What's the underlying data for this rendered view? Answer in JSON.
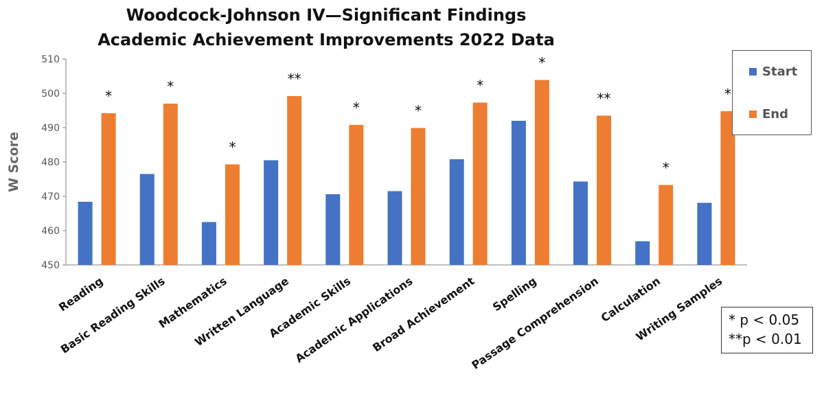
{
  "chart_data": {
    "type": "bar",
    "title": "Woodcock-Johnson IV—Significant Findings",
    "subtitle": "Academic Achievement Improvements 2022 Data",
    "xlabel": "",
    "ylabel": "W Score",
    "ylim": [
      450,
      510
    ],
    "yticks": [
      450,
      460,
      470,
      480,
      490,
      500,
      510
    ],
    "grid": false,
    "legend_position": "top-right",
    "categories": [
      "Reading",
      "Basic Reading Skills",
      "Mathematics",
      "Written Language",
      "Academic Skills",
      "Academic Applications",
      "Broad Achievement",
      "Spelling",
      "Passage Comprehension",
      "Calculation",
      "Writing Samples"
    ],
    "series": [
      {
        "name": "Start",
        "color": "#4472C4",
        "values": [
          468.4,
          476.5,
          462.5,
          480.5,
          470.6,
          471.5,
          480.8,
          492.0,
          474.3,
          456.9,
          468.1
        ]
      },
      {
        "name": "End",
        "color": "#ED7D31",
        "values": [
          494.2,
          497.0,
          479.3,
          499.2,
          490.8,
          489.9,
          497.3,
          503.9,
          493.5,
          473.3,
          494.8
        ]
      }
    ],
    "significance": [
      "*",
      "*",
      "*",
      "**",
      "*",
      "*",
      "*",
      "*",
      "**",
      "*",
      "*"
    ],
    "significance_note": [
      "* p < 0.05",
      "**p < 0.01"
    ]
  }
}
